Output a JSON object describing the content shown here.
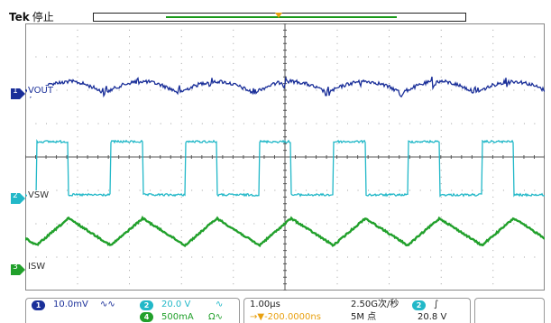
{
  "header": {
    "brand": "Tek",
    "run_state": "停止"
  },
  "trigger": {
    "marker_label": "T"
  },
  "channels": [
    {
      "number": "1",
      "label": "VOUT",
      "color": "#1a2f99"
    },
    {
      "number": "2",
      "label": "VSW",
      "color": "#22b8c8"
    },
    {
      "number": "3",
      "label": "ISW",
      "color": "#21a02b"
    }
  ],
  "traces": {
    "vout": {
      "color": "#1a2f99",
      "shape": "ripple",
      "periods_on_screen": 7
    },
    "vsw": {
      "color": "#22b8c8",
      "shape": "square-pulse",
      "periods_on_screen": 7,
      "duty": 0.43
    },
    "isw": {
      "color": "#21a02b",
      "shape": "triangle",
      "periods_on_screen": 7
    }
  },
  "status": {
    "ch1": {
      "badge": "1",
      "scale": "10.0mV",
      "coupling": "∿∿"
    },
    "ch2": {
      "badge": "2",
      "scale": "20.0 V",
      "coupling": "∿"
    },
    "ch4": {
      "badge": "4",
      "scale": "500mA",
      "coupling": "Ω∿"
    },
    "timebase": "1.00μs",
    "sample_rate": "2.50G次/秒",
    "delay": "→▼-200.0000ns",
    "record_length": "5M 点",
    "trigger_source_badge": "2",
    "trigger_slope": "∫",
    "trigger_level": "20.8 V"
  },
  "colors": {
    "grid": "#888888",
    "ch1": "#1a2f99",
    "ch2": "#22b8c8",
    "ch3": "#21a02b",
    "trigger": "#e8a010"
  }
}
